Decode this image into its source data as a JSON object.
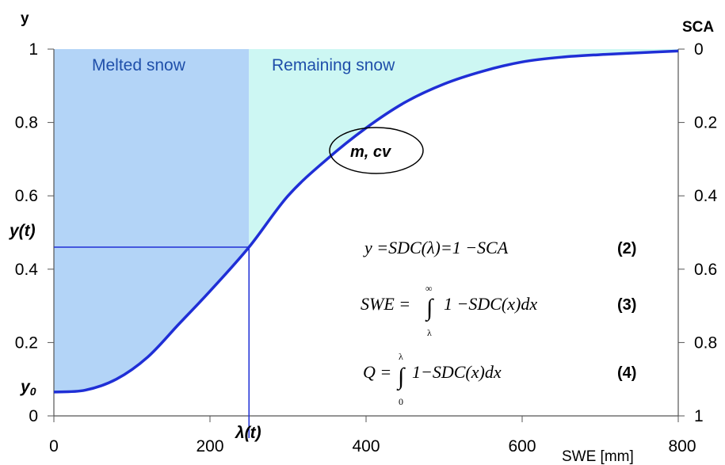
{
  "chart_data": {
    "type": "area",
    "y_axis_label": "y",
    "y2_axis_label": "SCA",
    "x_axis_label": "SWE [mm]",
    "xlim": [
      0,
      800
    ],
    "ylim": [
      0,
      1
    ],
    "x_ticks": [
      "0",
      "200",
      "400",
      "600",
      "800"
    ],
    "y_ticks": [
      "0",
      "0.2",
      "0.4",
      "0.6",
      "0.8",
      "1"
    ],
    "y2_ticks": [
      "1",
      "0.8",
      "0.6",
      "0.4",
      "0.2",
      "0"
    ],
    "y2_reversed": true,
    "grid": false,
    "regions": {
      "melted_label": "Melted snow",
      "remaining_label": "Remaining snow",
      "melted_color": "#b3d4f7",
      "remaining_color": "#cdf7f3"
    },
    "curve_color": "#1f2fd6",
    "series": [
      {
        "x": [
          0,
          40,
          80,
          120,
          160,
          200,
          250,
          300,
          350,
          400,
          450,
          500,
          550,
          600,
          650,
          700,
          750,
          800
        ],
        "y": [
          0.065,
          0.07,
          0.1,
          0.16,
          0.25,
          0.34,
          0.46,
          0.6,
          0.7,
          0.785,
          0.855,
          0.905,
          0.94,
          0.965,
          0.978,
          0.985,
          0.99,
          0.995
        ]
      }
    ],
    "lambda": 250,
    "y_at_lambda": 0.46,
    "y0": 0.065,
    "annotations": {
      "y_t": "y(t)",
      "y_0": "y",
      "y_0_sub": "0",
      "lambda_t": "λ(t)",
      "ellipse": "m, cv"
    },
    "equations": [
      {
        "text": "y =SDC(λ)=1 −SCA",
        "number": "(2)"
      },
      {
        "lhs": "SWE =",
        "upper": "∞",
        "lower": "λ",
        "integrand": "1 −SDC(x)dx",
        "number": "(3)"
      },
      {
        "lhs": "Q =",
        "upper": "λ",
        "lower": "0",
        "integrand": "1−SDC(x)dx",
        "number": "(4)"
      }
    ]
  }
}
